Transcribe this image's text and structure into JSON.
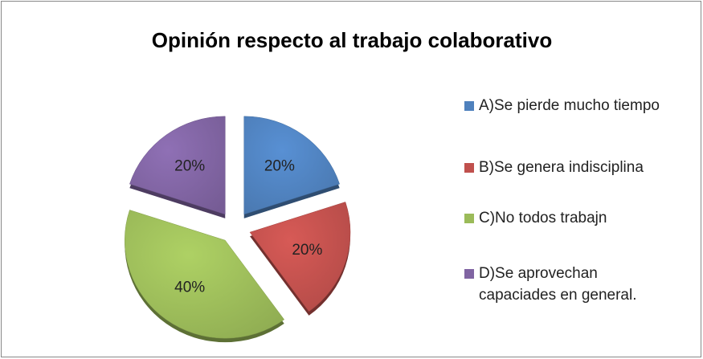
{
  "chart_data": {
    "type": "pie",
    "title": "Opinión respecto al trabajo colaborativo",
    "categories": [
      "A)Se pierde mucho tiempo",
      "B)Se genera indisciplina",
      "C)No todos trabajn",
      "D)Se aprovechan capaciades en general."
    ],
    "values": [
      20,
      20,
      40,
      20
    ],
    "value_labels": [
      "20%",
      "20%",
      "40%",
      "20%"
    ],
    "colors": [
      "#4f81bd",
      "#c0504d",
      "#9bbb59",
      "#8064a2"
    ],
    "legend": "right"
  }
}
